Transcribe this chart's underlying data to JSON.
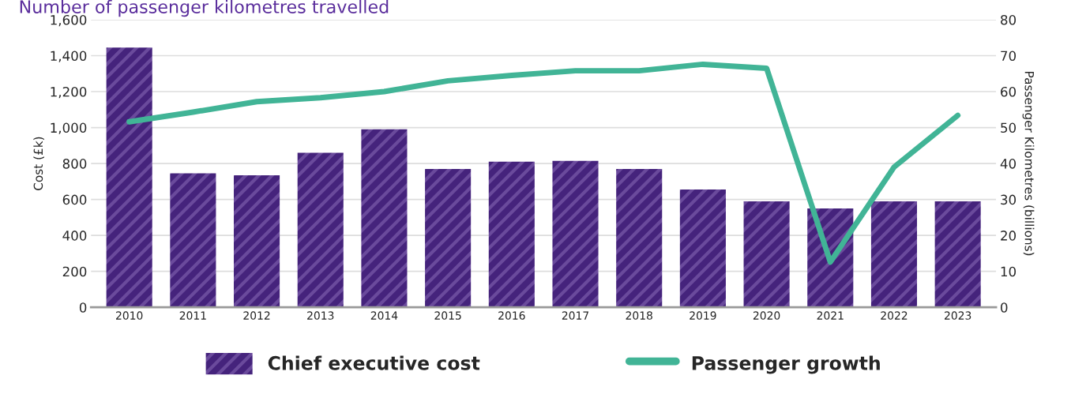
{
  "chart_data": {
    "type": "bar",
    "title": "Number of passenger kilometres travelled",
    "categories": [
      "2010",
      "2011",
      "2012",
      "2013",
      "2014",
      "2015",
      "2016",
      "2017",
      "2018",
      "2019",
      "2020",
      "2021",
      "2022",
      "2023"
    ],
    "series": [
      {
        "name": "Chief executive cost",
        "color": "#45237c",
        "values": [
          1445,
          745,
          735,
          860,
          990,
          770,
          810,
          815,
          770,
          655,
          590,
          550,
          590,
          590
        ]
      },
      {
        "name": "Passenger growth",
        "type": "line",
        "axis": "y2",
        "color": "#41b496",
        "values": [
          51.6,
          54.3,
          57.2,
          58.3,
          60,
          63,
          64.5,
          65.8,
          65.8,
          67.6,
          66.5,
          12.6,
          39,
          53.4
        ]
      }
    ],
    "ylabel": "Cost (£k)",
    "y2label": "Passenger Kilometres (billions)",
    "ylim": [
      0,
      1600
    ],
    "yticks": [
      {
        "value": 0,
        "label": "0"
      },
      {
        "value": 200,
        "label": "200"
      },
      {
        "value": 400,
        "label": "400"
      },
      {
        "value": 600,
        "label": "600"
      },
      {
        "value": 800,
        "label": "800"
      },
      {
        "value": 1000,
        "label": "1,000"
      },
      {
        "value": 1200,
        "label": "1,200"
      },
      {
        "value": 1400,
        "label": "1,400"
      },
      {
        "value": 1600,
        "label": "1,600"
      }
    ],
    "y2lim": [
      0,
      80
    ],
    "y2ticks": [
      0,
      10,
      20,
      30,
      40,
      50,
      60,
      70,
      80
    ],
    "grid": "y",
    "legend": "bottom"
  }
}
